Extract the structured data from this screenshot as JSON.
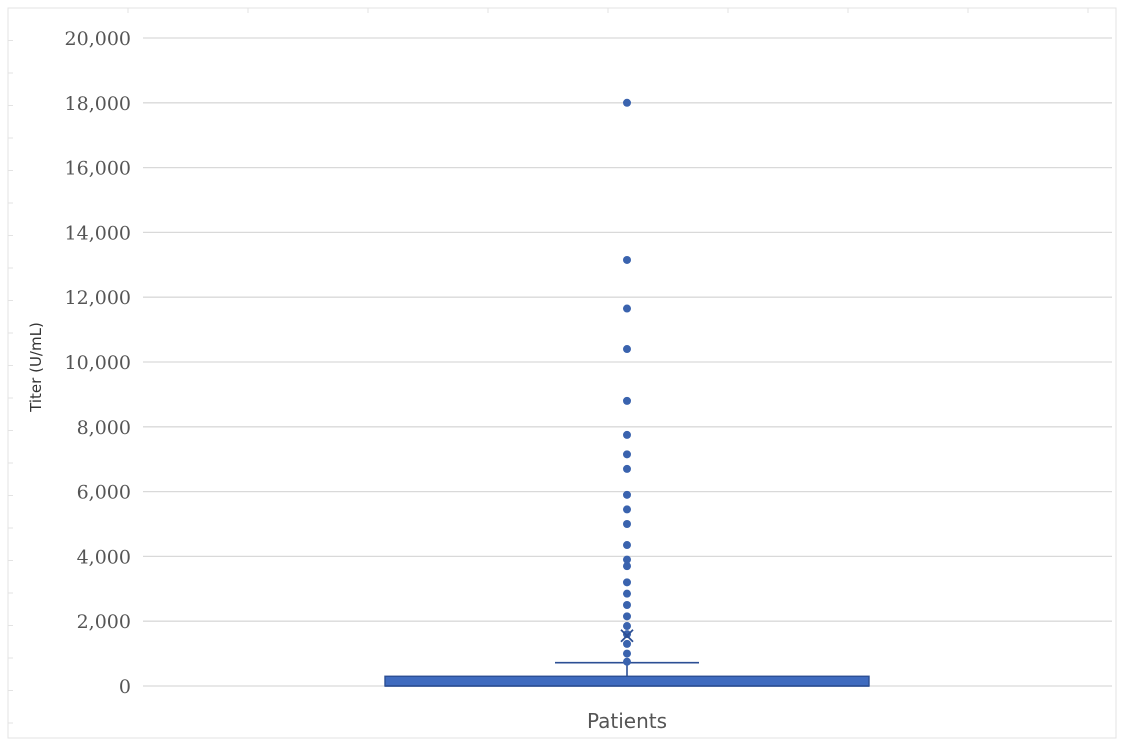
{
  "chart_data": {
    "type": "box",
    "title": "",
    "xlabel": "",
    "ylabel": "Titer (U/mL)",
    "categories": [
      "Patients"
    ],
    "ylim": [
      0,
      20000
    ],
    "y_ticks": [
      0,
      2000,
      4000,
      6000,
      8000,
      10000,
      12000,
      14000,
      16000,
      18000,
      20000
    ],
    "y_tick_labels": [
      "0",
      "2,000",
      "4,000",
      "6,000",
      "8,000",
      "10,000",
      "12,000",
      "14,000",
      "16,000",
      "18,000",
      "20,000"
    ],
    "grid": true,
    "legend": "none",
    "series": [
      {
        "category": "Patients",
        "min": 0,
        "q1": 0,
        "median": 0,
        "q3": 300,
        "max": 720,
        "mean": 1550,
        "outliers": [
          750,
          1000,
          1300,
          1600,
          1850,
          2150,
          2500,
          2850,
          3200,
          3700,
          3900,
          4350,
          5000,
          5450,
          5900,
          6700,
          7150,
          7750,
          8800,
          10400,
          11650,
          13150,
          18000
        ]
      }
    ],
    "colors": {
      "box": "#3f6bbf",
      "box_edge": "#2c4f94",
      "points": "#3a63ae",
      "grid": "#d9d9d9"
    }
  }
}
